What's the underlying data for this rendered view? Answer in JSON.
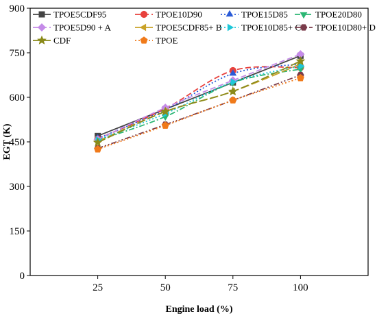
{
  "chart_data": {
    "type": "line",
    "xlabel": "Engine load (%)",
    "ylabel": "EGT (K)",
    "x": [
      25,
      50,
      75,
      100
    ],
    "xlim": [
      0,
      125
    ],
    "ylim": [
      0,
      900
    ],
    "yticks": [
      0,
      150,
      300,
      450,
      600,
      750,
      900
    ],
    "grid": false,
    "legend_position": "top",
    "series": [
      {
        "name": "TPOE5CDF95",
        "values": [
          470,
          560,
          650,
          740
        ],
        "color": "#444444",
        "marker": "square",
        "dash": "solid"
      },
      {
        "name": "TPOE10D90",
        "values": [
          460,
          562,
          690,
          700
        ],
        "color": "#e8413c",
        "marker": "circle",
        "dash": "dash"
      },
      {
        "name": "TPOE15D85",
        "values": [
          462,
          558,
          680,
          712
        ],
        "color": "#2a5bd7",
        "marker": "triangle-up",
        "dash": "dot"
      },
      {
        "name": "TPOE20D80",
        "values": [
          455,
          535,
          650,
          695
        ],
        "color": "#2bb673",
        "marker": "triangle-down",
        "dash": "dashdot"
      },
      {
        "name": "TPOE5D90 +  A",
        "values": [
          458,
          565,
          657,
          745
        ],
        "color": "#c58be8",
        "marker": "diamond",
        "dash": "dash"
      },
      {
        "name": "TPOE5CDF85+ B",
        "values": [
          452,
          552,
          620,
          712
        ],
        "color": "#c9a227",
        "marker": "triangle-left",
        "dash": "longdash"
      },
      {
        "name": "TPOE10D85+ C",
        "values": [
          457,
          545,
          652,
          705
        ],
        "color": "#1ec7d8",
        "marker": "triangle-right",
        "dash": "dot"
      },
      {
        "name": "TPOE10D80+ D",
        "values": [
          428,
          508,
          590,
          675
        ],
        "color": "#7a3b4a",
        "marker": "hexagon",
        "dash": "dashdotdot"
      },
      {
        "name": "CDF",
        "values": [
          448,
          552,
          620,
          722
        ],
        "color": "#8a8a1a",
        "marker": "star",
        "dash": "longdash"
      },
      {
        "name": "TPOE",
        "values": [
          425,
          505,
          590,
          665
        ],
        "color": "#f07a1a",
        "marker": "pentagon",
        "dash": "dot"
      }
    ]
  }
}
